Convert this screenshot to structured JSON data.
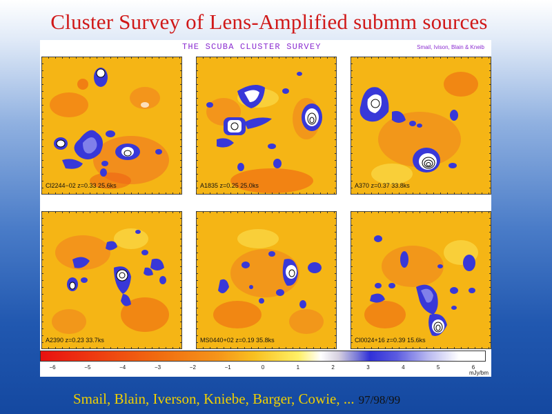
{
  "slide": {
    "title": "Cluster Survey of  Lens-Amplified submm sources",
    "footer": {
      "authors": "Smail, Blain, Iverson, Kniebe, Barger, Cowie, ...",
      "years": "97/98/99"
    }
  },
  "figure": {
    "heading": "THE SCUBA CLUSTER SURVEY",
    "credit": "Smail, Ivison, Blain & Kneib",
    "panels": [
      {
        "label": "Cl2244−02  z=0.33  25.6ks"
      },
      {
        "label": "A1835  z=0.25  25.0ks"
      },
      {
        "label": "A370  z=0.37  33.8ks"
      },
      {
        "label": "A2390  z=0.23  33.7ks"
      },
      {
        "label": "MS0440+02  z=0.19  35.8ks"
      },
      {
        "label": "Cl0024+16  z=0.39  15.6ks"
      }
    ],
    "colorbar": {
      "ticks": [
        "−6",
        "−5",
        "−4",
        "−3",
        "−2",
        "−1",
        "0",
        "1",
        "2",
        "3",
        "4",
        "5",
        "6"
      ],
      "unit": "mJy/bm",
      "colors": {
        "low": "#e81010",
        "mid": "#f5b515",
        "zero": "#ffffff",
        "high": "#3030d8"
      }
    }
  }
}
